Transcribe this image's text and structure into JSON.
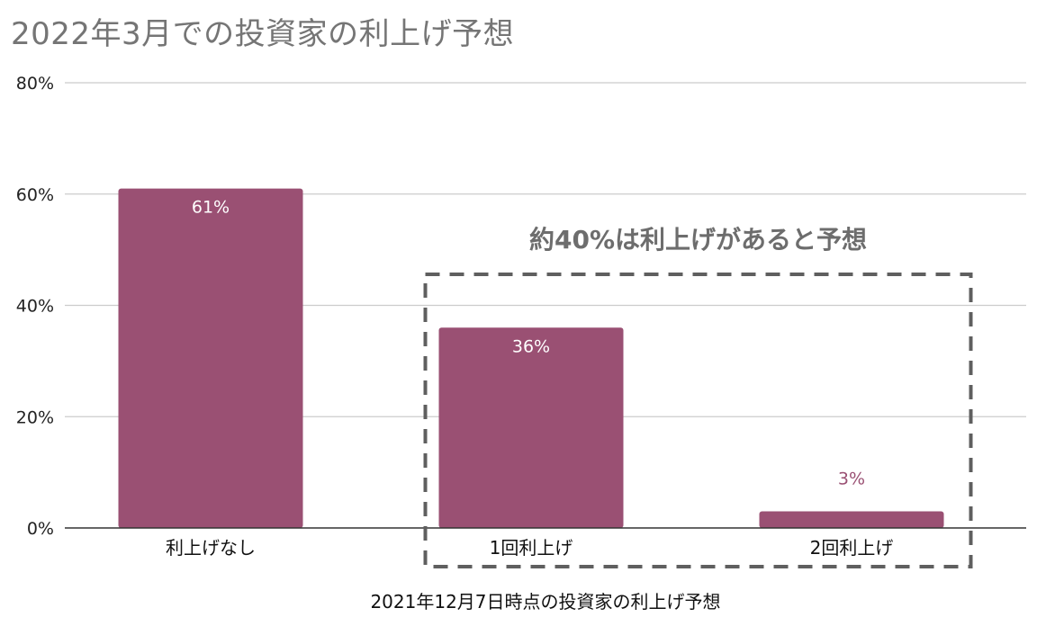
{
  "chart_data": {
    "type": "bar",
    "title": "2022年3月での投資家の利上げ予想",
    "xlabel": "2021年12月7日時点の投資家の利上げ予想",
    "ylabel": "",
    "categories": [
      "利上げなし",
      "1回利上げ",
      "2回利上げ"
    ],
    "values": [
      0.61,
      0.36,
      0.03
    ],
    "data_labels": [
      "61%",
      "36%",
      "3%"
    ],
    "ylim": [
      0,
      0.8
    ],
    "yticks": [
      0,
      0.2,
      0.4,
      0.6,
      0.8
    ],
    "ytick_labels": [
      "0%",
      "20%",
      "40%",
      "60%",
      "80%"
    ],
    "grid": true,
    "legend": "none",
    "annotation": {
      "text": "約40%は利上げがあると予想",
      "encloses": [
        "1回利上げ",
        "2回利上げ"
      ]
    },
    "colors": {
      "bar": "#9a5073",
      "label_inside": "#ffffff",
      "label_outside": "#9a5073",
      "grid": "#cccccc",
      "axis": "#333333",
      "annotation_box": "#5f5f5f"
    }
  }
}
